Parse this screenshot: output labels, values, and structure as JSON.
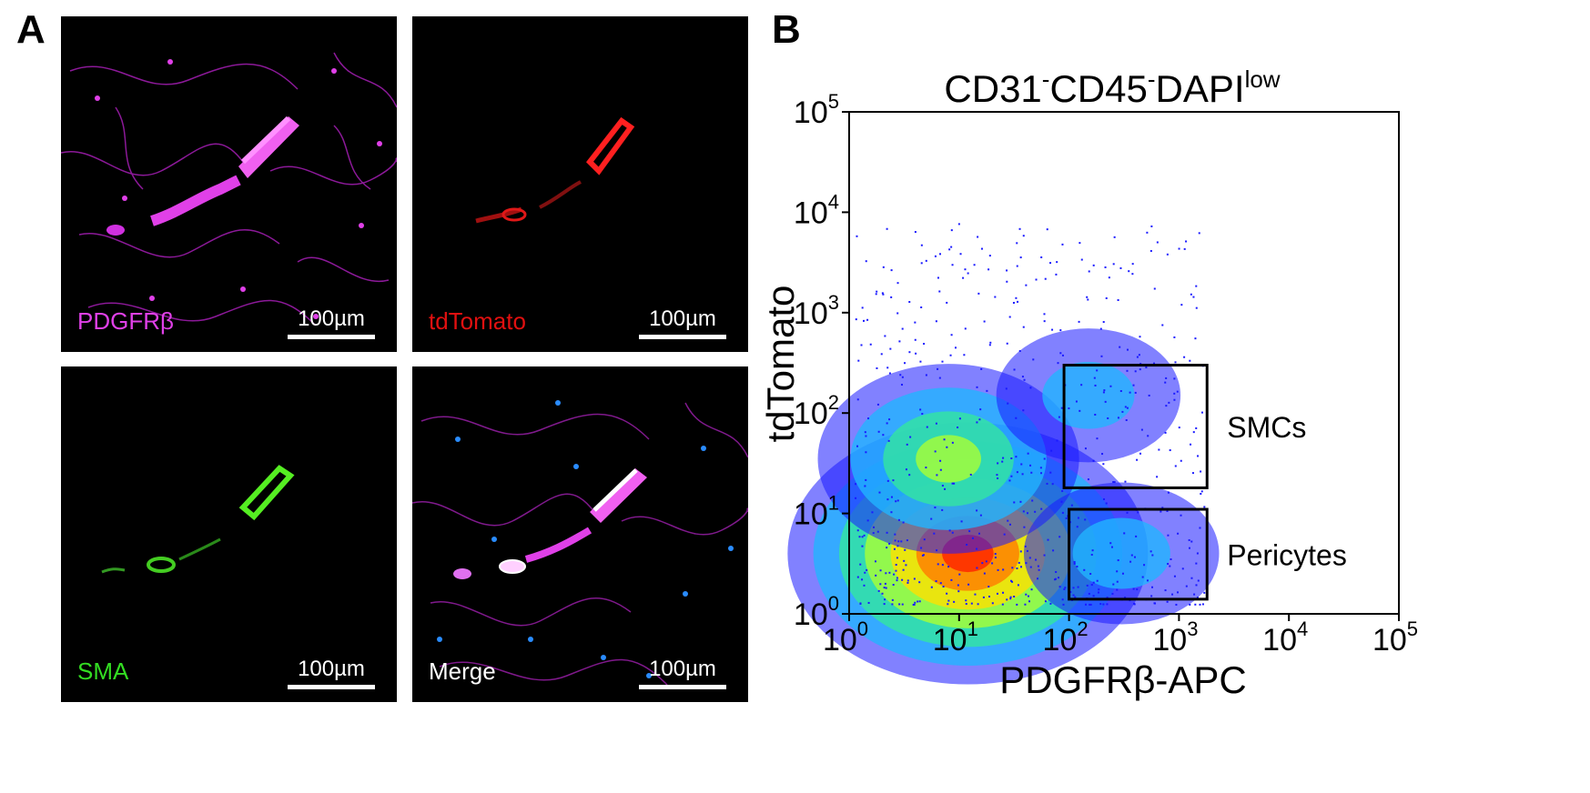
{
  "panel_a": {
    "letter": "A",
    "images": [
      {
        "channel": "PDGFRβ",
        "label_color": "#e040e8",
        "scale": "100µm"
      },
      {
        "channel": "tdTomato",
        "label_color": "#e01010",
        "scale": "100µm"
      },
      {
        "channel": "SMA",
        "label_color": "#33dd22",
        "scale": "100µm"
      },
      {
        "channel": "Merge",
        "label_color": "#ffffff",
        "scale": "100µm"
      }
    ]
  },
  "panel_b": {
    "letter": "B",
    "title_main": "CD31",
    "title_sup1": "-",
    "title_mid": "CD45",
    "title_sup2": "-",
    "title_tail": "DAPI",
    "title_sup3": "low"
  },
  "chart_data": {
    "type": "scatter",
    "subtype": "flow-cytometry-density-plot",
    "xlabel": "PDGFRβ-APC",
    "ylabel": "tdTomato",
    "x_scale": "log",
    "y_scale": "log",
    "xlim": [
      1,
      100000
    ],
    "ylim": [
      1,
      100000
    ],
    "x_ticks": [
      {
        "base": "10",
        "exp": "0"
      },
      {
        "base": "10",
        "exp": "1"
      },
      {
        "base": "10",
        "exp": "2"
      },
      {
        "base": "10",
        "exp": "3"
      },
      {
        "base": "10",
        "exp": "4"
      },
      {
        "base": "10",
        "exp": "5"
      }
    ],
    "y_ticks": [
      {
        "base": "10",
        "exp": "0"
      },
      {
        "base": "10",
        "exp": "1"
      },
      {
        "base": "10",
        "exp": "2"
      },
      {
        "base": "10",
        "exp": "3"
      },
      {
        "base": "10",
        "exp": "4"
      },
      {
        "base": "10",
        "exp": "5"
      }
    ],
    "density_colors": [
      "#1a1aff",
      "#22b4ff",
      "#33e6a0",
      "#aaff33",
      "#ffe000",
      "#ff7a00",
      "#ff2000"
    ],
    "populations": [
      {
        "x": 12,
        "y": 4,
        "relative_density": 1.0
      },
      {
        "x": 8,
        "y": 35,
        "relative_density": 0.55
      },
      {
        "x": 300,
        "y": 4,
        "relative_density": 0.25
      },
      {
        "x": 150,
        "y": 150,
        "relative_density": 0.2
      }
    ],
    "gates": [
      {
        "label": "SMCs",
        "x_range": [
          90,
          1800
        ],
        "y_range": [
          18,
          300
        ]
      },
      {
        "label": "Pericytes",
        "x_range": [
          100,
          1800
        ],
        "y_range": [
          1.4,
          11
        ]
      }
    ]
  }
}
